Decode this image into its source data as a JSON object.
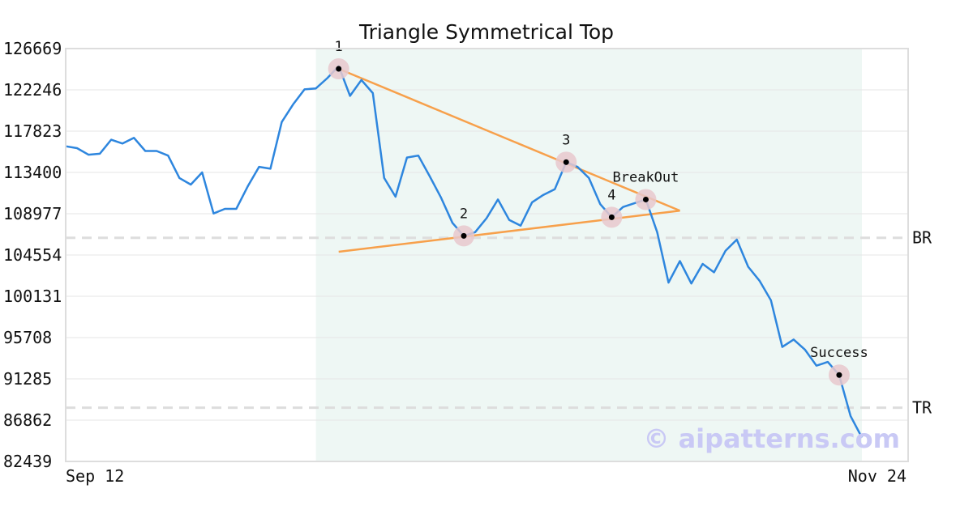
{
  "chart_data": {
    "type": "line",
    "title": "Triangle Symmetrical Top",
    "x_labels": [
      "Sep 12",
      "Nov 24"
    ],
    "y_ticks": [
      82439,
      86862,
      91285,
      95708,
      100131,
      104554,
      108977,
      113400,
      117823,
      122246,
      126669
    ],
    "ylim": [
      82439,
      126669
    ],
    "grid": true,
    "series": [
      {
        "values": [
          116200,
          116000,
          115300,
          115400,
          116900,
          116500,
          117100,
          115700,
          115700,
          115200,
          112800,
          112100,
          113400,
          109000,
          109500,
          109500,
          111900,
          114000,
          113800,
          118800,
          120700,
          122300,
          122400,
          123500,
          124800,
          121600,
          123300,
          121900,
          112800,
          110800,
          115000,
          115200,
          113000,
          110700,
          108000,
          106600,
          107000,
          108500,
          110500,
          108300,
          107700,
          110200,
          111000,
          111600,
          114500,
          114000,
          112800,
          110000,
          108600,
          109700,
          110100,
          110500,
          107000,
          101600,
          103900,
          101500,
          103600,
          102700,
          105000,
          106200,
          103300,
          101800,
          99700,
          94700,
          95500,
          94400,
          92700,
          93100,
          91700,
          87300,
          85000
        ]
      }
    ],
    "shaded_region": {
      "from_index": 22,
      "to_index": 70
    },
    "trendlines": [
      {
        "from": [
          24,
          124500
        ],
        "to": [
          54,
          109300
        ]
      },
      {
        "from": [
          24,
          104900
        ],
        "to": [
          54,
          109300
        ]
      }
    ],
    "reference_lines": [
      {
        "label": "BR",
        "value": 106400
      },
      {
        "label": "TR",
        "value": 88200
      }
    ],
    "annotations": [
      {
        "label": "1",
        "index": 24,
        "value": 124500
      },
      {
        "label": "2",
        "index": 35,
        "value": 106600
      },
      {
        "label": "3",
        "index": 44,
        "value": 114500
      },
      {
        "label": "4",
        "index": 48,
        "value": 108600
      },
      {
        "label": "BreakOut",
        "index": 51,
        "value": 110500
      },
      {
        "label": "Success",
        "index": 68,
        "value": 91700
      }
    ],
    "watermark": "© aipatterns.com",
    "colors": {
      "line": "#2e86de",
      "trend": "#f7a04b",
      "shade": "#eef7f4",
      "ref": "#dddddd",
      "marker": "#e8c8cc"
    }
  }
}
